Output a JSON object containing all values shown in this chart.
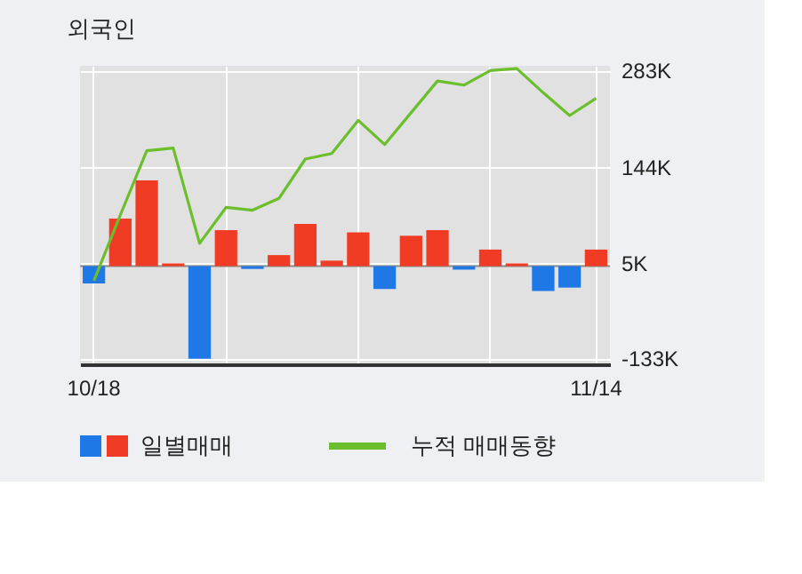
{
  "chart_data": {
    "type": "bar",
    "title": "외국인",
    "categories": [
      "10/18",
      null,
      null,
      null,
      null,
      null,
      null,
      null,
      null,
      null,
      null,
      null,
      null,
      null,
      null,
      null,
      null,
      null,
      null,
      "11/14"
    ],
    "series": [
      {
        "name": "일별매매",
        "colors": [
          "#1e78e6",
          "#f03c24",
          "#f03c24",
          "#f03c24",
          "#1e78e6",
          "#f03c24",
          "#1e78e6",
          "#f03c24",
          "#f03c24",
          "#f03c24",
          "#f03c24",
          "#1e78e6",
          "#f03c24",
          "#f03c24",
          "#1e78e6",
          "#f03c24",
          "#f03c24",
          "#1e78e6",
          "#1e78e6",
          "#f03c24"
        ],
        "values": [
          -25,
          69,
          124,
          4,
          -134,
          52,
          -4,
          16,
          61,
          8,
          49,
          -33,
          44,
          52,
          -5,
          24,
          4,
          -36,
          -31,
          24
        ]
      },
      {
        "name": "누적 매매동향",
        "type": "line",
        "color": "#6cbf2c",
        "values": [
          -21,
          74,
          167,
          171,
          33,
          85,
          81,
          98,
          155,
          163,
          211,
          176,
          222,
          268,
          262,
          283,
          286,
          251,
          218,
          243
        ]
      }
    ],
    "ylim": [
      -142,
      290
    ],
    "yticks": [
      {
        "value": 283,
        "label": "283K"
      },
      {
        "value": 144,
        "label": "144K"
      },
      {
        "value": 5,
        "label": "5K"
      },
      {
        "value": -133,
        "label": "-133K"
      }
    ],
    "ref_lines": [
      {
        "axis": "y",
        "value": 0,
        "color": "#8c8c8c"
      }
    ],
    "grid": true,
    "legend": "bottom"
  }
}
